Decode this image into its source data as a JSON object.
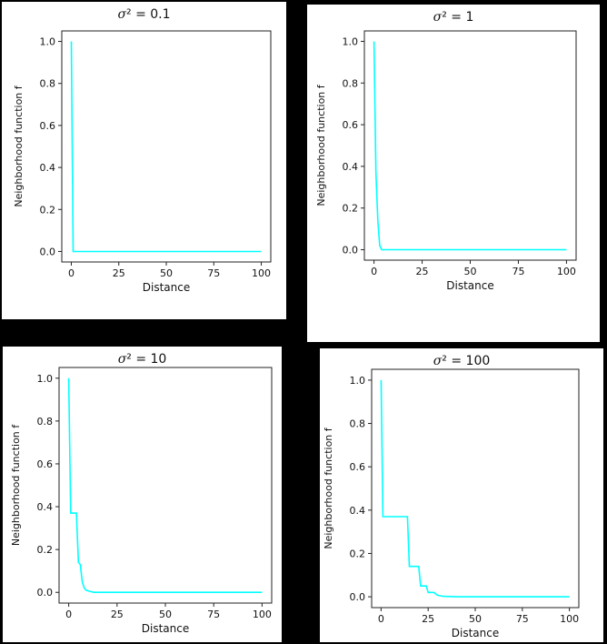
{
  "chart_data": [
    {
      "type": "line",
      "title": "σ² = 0.1",
      "title_sigma": "σ",
      "title_rest": "² = 0.1",
      "xlabel": "Distance",
      "ylabel": "Neighborhood function f",
      "xlim": [
        0,
        100
      ],
      "ylim": [
        0,
        1.0
      ],
      "xticks": [
        "0",
        "25",
        "50",
        "75",
        "100"
      ],
      "yticks": [
        "0.0",
        "0.2",
        "0.4",
        "0.6",
        "0.8",
        "1.0"
      ],
      "color": "#00FFFF",
      "x": [
        0,
        1,
        2,
        100
      ],
      "y": [
        1.0,
        0.0,
        0.0,
        0.0
      ]
    },
    {
      "type": "line",
      "title": "σ² = 1",
      "title_sigma": "σ",
      "title_rest": "² = 1",
      "xlabel": "Distance",
      "ylabel": "Neighborhood function f",
      "xlim": [
        0,
        100
      ],
      "ylim": [
        0,
        1.0
      ],
      "xticks": [
        "0",
        "25",
        "50",
        "75",
        "100"
      ],
      "yticks": [
        "0.0",
        "0.2",
        "0.4",
        "0.6",
        "0.8",
        "1.0"
      ],
      "color": "#00FFFF",
      "x": [
        0,
        1,
        2,
        3,
        4,
        100
      ],
      "y": [
        1.0,
        0.37,
        0.14,
        0.02,
        0.0,
        0.0
      ]
    },
    {
      "type": "line",
      "title": "σ² = 10",
      "title_sigma": "σ",
      "title_rest": "² = 10",
      "xlabel": "Distance",
      "ylabel": "Neighborhood function f",
      "xlim": [
        0,
        100
      ],
      "ylim": [
        0,
        1.0
      ],
      "xticks": [
        "0",
        "25",
        "50",
        "75",
        "100"
      ],
      "yticks": [
        "0.0",
        "0.2",
        "0.4",
        "0.6",
        "0.8",
        "1.0"
      ],
      "color": "#00FFFF",
      "x": [
        0,
        1,
        4,
        5,
        6,
        7,
        8,
        9,
        11,
        13,
        100
      ],
      "y": [
        1.0,
        0.37,
        0.37,
        0.14,
        0.13,
        0.05,
        0.02,
        0.01,
        0.005,
        0.0,
        0.0
      ]
    },
    {
      "type": "line",
      "title": "σ² = 100",
      "title_sigma": "σ",
      "title_rest": "² = 100",
      "xlabel": "Distance",
      "ylabel": "Neighborhood function f",
      "xlim": [
        0,
        100
      ],
      "ylim": [
        0,
        1.0
      ],
      "xticks": [
        "0",
        "25",
        "50",
        "75",
        "100"
      ],
      "yticks": [
        "0.0",
        "0.2",
        "0.4",
        "0.6",
        "0.8",
        "1.0"
      ],
      "color": "#00FFFF",
      "x": [
        0,
        1,
        14,
        15,
        20,
        21,
        24,
        25,
        28,
        30,
        33,
        40,
        100
      ],
      "y": [
        1.0,
        0.37,
        0.37,
        0.14,
        0.14,
        0.05,
        0.05,
        0.02,
        0.02,
        0.007,
        0.002,
        0.0,
        0.0
      ]
    }
  ]
}
